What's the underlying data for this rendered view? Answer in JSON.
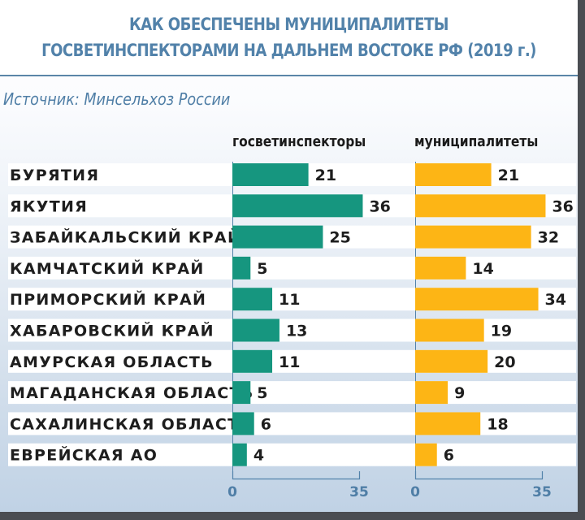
{
  "title_lines": [
    "КАК ОБЕСПЕЧЕНЫ МУНИЦИПАЛИТЕТЫ",
    "ГОСВЕТИНСПЕКТОРАМИ НА ДАЛЬНЕМ ВОСТОКЕ РФ (2019 г.)"
  ],
  "source": "Источник: Минсельхоз России",
  "colors": {
    "inspectors": "#16967f",
    "municipalities": "#fdb515",
    "title": "#5282aa",
    "axis": "#5282aa"
  },
  "chart_data": {
    "type": "bar",
    "orientation": "horizontal",
    "title": "КАК ОБЕСПЕЧЕНЫ МУНИЦИПАЛИТЕТЫ ГОСВЕТИНСПЕКТОРАМИ НА ДАЛЬНЕМ ВОСТОКЕ РФ (2019 г.)",
    "categories": [
      "БУРЯТИЯ",
      "ЯКУТИЯ",
      "ЗАБАЙКАЛЬСКИЙ КРАЙ",
      "КАМЧАТСКИЙ КРАЙ",
      "ПРИМОРСКИЙ КРАЙ",
      "ХАБАРОВСКИЙ КРАЙ",
      "АМУРСКАЯ ОБЛАСТЬ",
      "МАГАДАНСКАЯ ОБЛАСТЬ",
      "САХАЛИНСКАЯ ОБЛАСТЬ",
      "ЕВРЕЙСКАЯ АО"
    ],
    "series": [
      {
        "name": "госветинспекторы",
        "values": [
          21,
          36,
          25,
          5,
          11,
          13,
          11,
          5,
          6,
          4
        ]
      },
      {
        "name": "муниципалитеты",
        "values": [
          21,
          36,
          32,
          14,
          34,
          19,
          20,
          9,
          18,
          6
        ]
      }
    ],
    "xlim": [
      0,
      35
    ],
    "tick_labels": [
      "0",
      "35"
    ],
    "grid": false,
    "legend": "column headers above each panel"
  }
}
